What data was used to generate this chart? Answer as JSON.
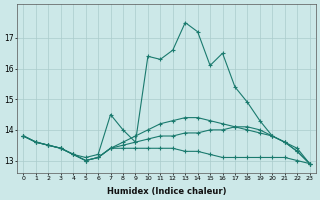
{
  "xlabel": "Humidex (Indice chaleur)",
  "ylabel": "",
  "background_color": "#cce8e8",
  "grid_color": "#aacccc",
  "line_color": "#1a7a6e",
  "xlim": [
    -0.5,
    23.5
  ],
  "ylim": [
    12.6,
    18.1
  ],
  "yticks": [
    13,
    14,
    15,
    16,
    17
  ],
  "xticks": [
    0,
    1,
    2,
    3,
    4,
    5,
    6,
    7,
    8,
    9,
    10,
    11,
    12,
    13,
    14,
    15,
    16,
    17,
    18,
    19,
    20,
    21,
    22,
    23
  ],
  "series": [
    {
      "x": [
        0,
        1,
        2,
        3,
        4,
        5,
        6,
        7,
        8,
        9,
        10,
        11,
        12,
        13,
        14,
        15,
        16,
        17,
        18,
        19,
        20,
        21,
        22,
        23
      ],
      "y": [
        13.8,
        13.6,
        13.5,
        13.4,
        13.2,
        13.0,
        13.1,
        13.4,
        13.4,
        13.4,
        13.4,
        13.4,
        13.4,
        13.3,
        13.3,
        13.2,
        13.1,
        13.1,
        13.1,
        13.1,
        13.1,
        13.1,
        13.0,
        12.9
      ]
    },
    {
      "x": [
        0,
        1,
        2,
        3,
        4,
        5,
        6,
        7,
        8,
        9,
        10,
        11,
        12,
        13,
        14,
        15,
        16,
        17,
        18,
        19,
        20,
        21,
        22,
        23
      ],
      "y": [
        13.8,
        13.6,
        13.5,
        13.4,
        13.2,
        13.0,
        13.1,
        13.4,
        13.5,
        13.6,
        13.7,
        13.8,
        13.8,
        13.9,
        13.9,
        14.0,
        14.0,
        14.1,
        14.1,
        14.0,
        13.8,
        13.6,
        13.3,
        12.9
      ]
    },
    {
      "x": [
        0,
        1,
        2,
        3,
        4,
        5,
        6,
        7,
        8,
        9,
        10,
        11,
        12,
        13,
        14,
        15,
        16,
        17,
        18,
        19,
        20,
        21,
        22,
        23
      ],
      "y": [
        13.8,
        13.6,
        13.5,
        13.4,
        13.2,
        13.0,
        13.1,
        13.4,
        13.6,
        13.8,
        14.0,
        14.2,
        14.3,
        14.4,
        14.4,
        14.3,
        14.2,
        14.1,
        14.0,
        13.9,
        13.8,
        13.6,
        13.4,
        12.9
      ]
    },
    {
      "x": [
        0,
        1,
        2,
        3,
        4,
        5,
        6,
        7,
        8,
        9,
        10,
        11,
        12,
        13,
        14,
        15,
        16,
        17,
        18,
        19,
        20,
        21,
        22,
        23
      ],
      "y": [
        13.8,
        13.6,
        13.5,
        13.4,
        13.2,
        13.1,
        13.2,
        14.5,
        14.0,
        13.6,
        16.4,
        16.3,
        16.6,
        17.5,
        17.2,
        16.1,
        16.5,
        15.4,
        14.9,
        14.3,
        13.8,
        13.6,
        13.3,
        12.9
      ]
    }
  ]
}
